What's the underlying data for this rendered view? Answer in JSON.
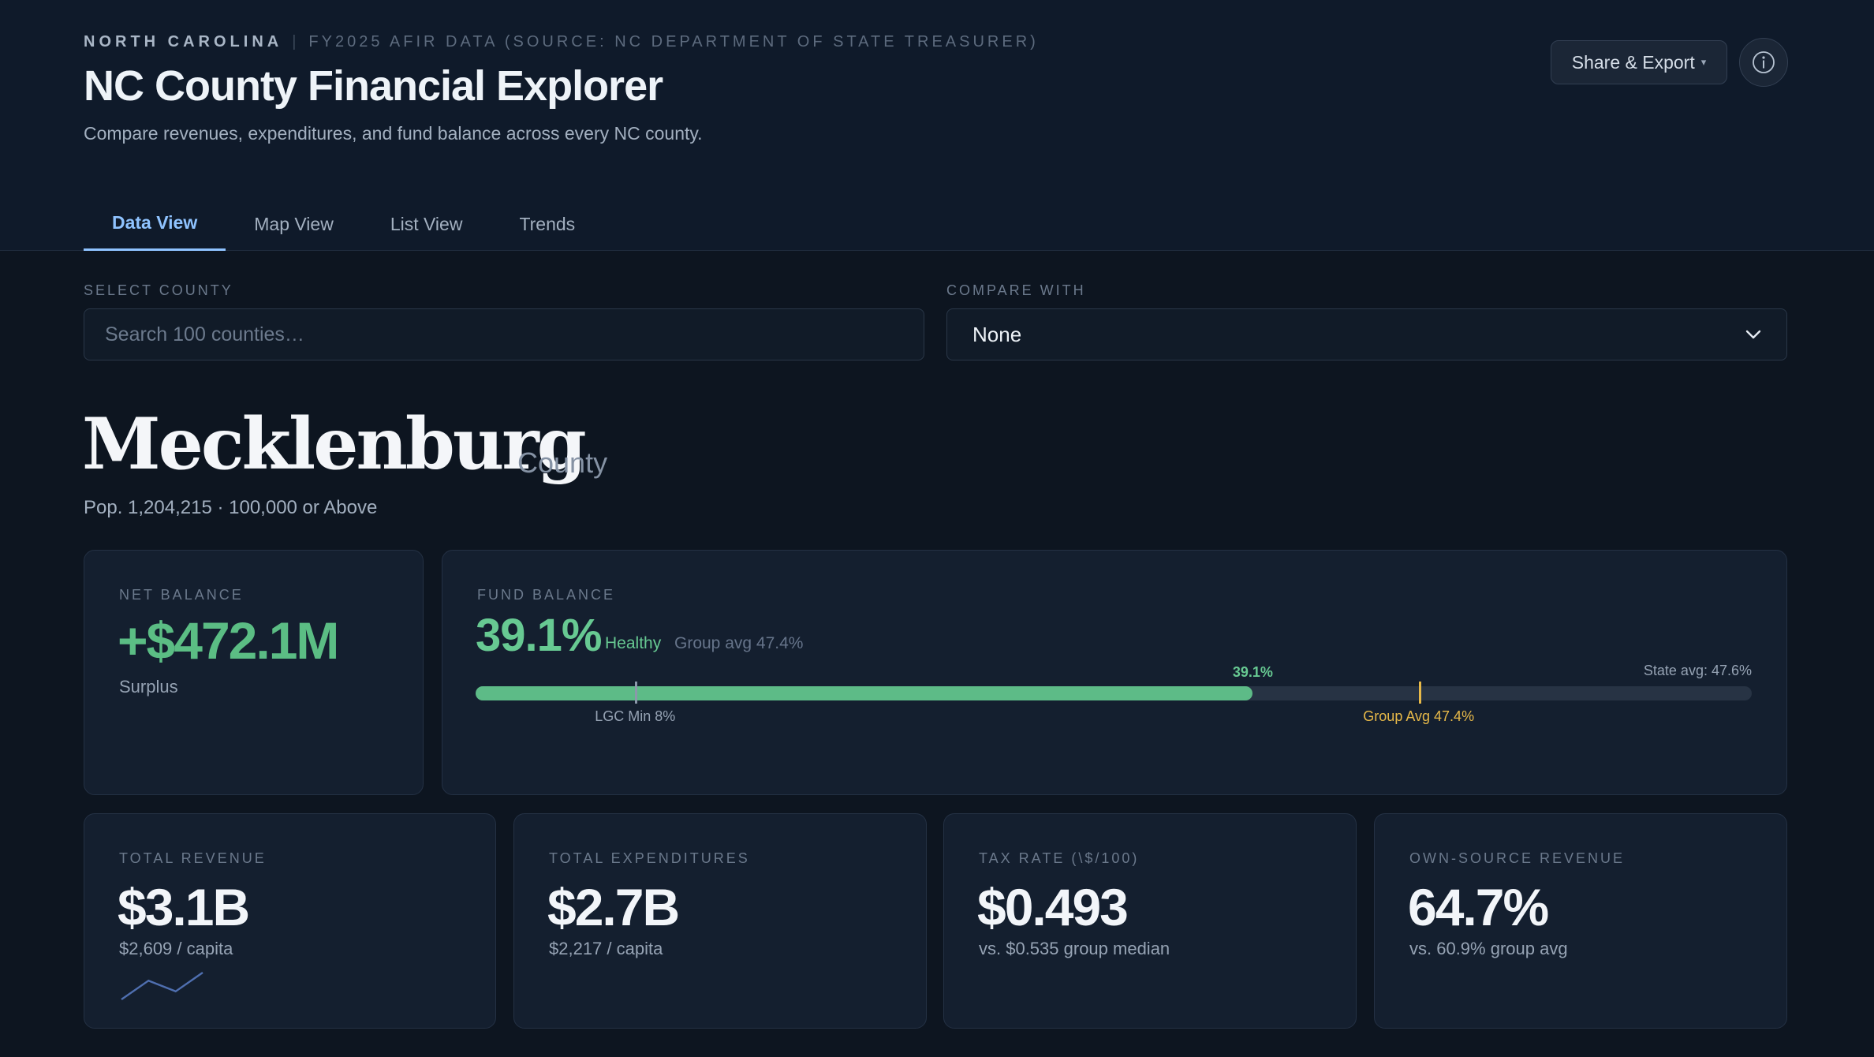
{
  "header": {
    "state": "North Carolina",
    "source": "FY2025 AFIR Data (Source: NC Department of State Treasurer)",
    "title": "NC County Financial Explorer",
    "subtitle": "Compare revenues, expenditures, and fund balance across every NC county.",
    "share_label": "Share & Export",
    "caret": "⌄",
    "info_icon": "info-icon"
  },
  "tabs": [
    {
      "label": "Data View",
      "active": true
    },
    {
      "label": "Map View",
      "active": false
    },
    {
      "label": "List View",
      "active": false
    },
    {
      "label": "Trends",
      "active": false
    }
  ],
  "filters": {
    "select_label": "Select County",
    "search_placeholder": "Search 100 counties…",
    "compare_label": "Compare With",
    "compare_value": "None"
  },
  "county": {
    "name": "Mecklenburg",
    "suffix": "County",
    "pop_line": "Pop. 1,204,215 · 100,000 or Above"
  },
  "net_balance": {
    "label": "Net Balance",
    "value": "+$472.1M",
    "sub": "Surplus",
    "color": "#5bbd84"
  },
  "fund_balance": {
    "label": "Fund Balance",
    "value": "39.1%",
    "status": "Healthy",
    "group_avg_text": "Group avg 47.4%",
    "state_avg_text": "State avg: 47.6%",
    "fill_label": "39.1%",
    "lgc_label": "LGC Min 8%",
    "group_marker_label": "Group Avg 47.4%",
    "fill_fraction": 0.609,
    "lgc_fraction": 0.125,
    "group_fraction": 0.739,
    "colors": {
      "fill": "#5dbb87",
      "group": "#e7b949",
      "lgc": "#8b98aa"
    }
  },
  "metrics": [
    {
      "label": "Total Revenue",
      "value": "$3.1B",
      "sub": "$2,609 / capita",
      "sparkline": [
        0,
        0.7,
        0.3,
        1
      ]
    },
    {
      "label": "Total Expenditures",
      "value": "$2.7B",
      "sub": "$2,217 / capita"
    },
    {
      "label": "Tax Rate (\\$/100)",
      "value": "$0.493",
      "sub": "vs. $0.535 group median"
    },
    {
      "label": "Own-Source Revenue",
      "value": "64.7%",
      "sub": "vs. 60.9% group avg"
    }
  ]
}
